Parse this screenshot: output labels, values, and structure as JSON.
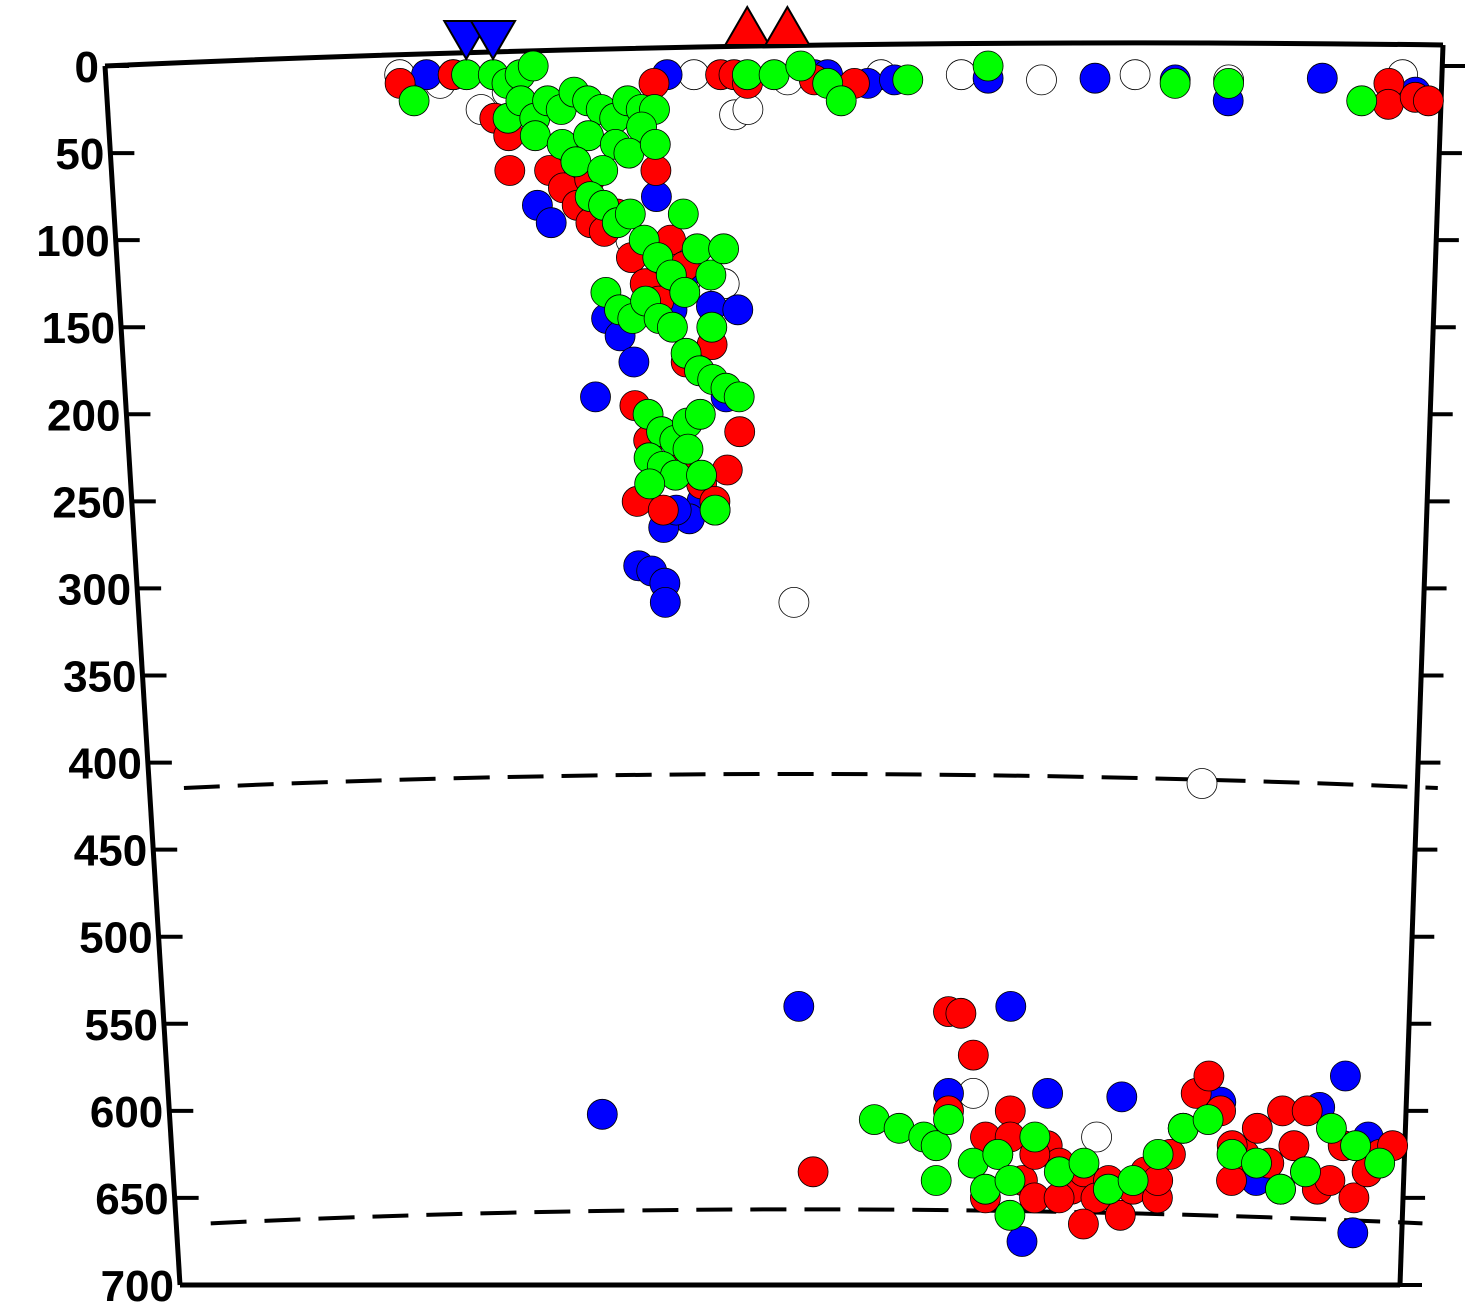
{
  "chart_data": {
    "type": "scatter",
    "title": "",
    "xlabel": "",
    "ylabel": "",
    "ylim": [
      700,
      0
    ],
    "y_ticks": [
      "0",
      "50",
      "100",
      "150",
      "200",
      "250",
      "300",
      "350",
      "400",
      "450",
      "500",
      "550",
      "600",
      "650",
      "700"
    ],
    "x_axis": "distance along profile (unlabeled)",
    "grid": false,
    "reference_lines": [
      {
        "name": "410",
        "style": "dashed"
      },
      {
        "name": "660",
        "style": "dashed"
      }
    ],
    "markers": [
      {
        "shape": "inverted-triangle",
        "color": "#0000ff",
        "x": [
          0.27,
          0.29
        ]
      },
      {
        "shape": "triangle",
        "color": "#ff0000",
        "x": [
          0.48,
          0.51
        ]
      }
    ],
    "series": [
      {
        "color": "#0000ff",
        "points": [
          [
            0.24,
            5
          ],
          [
            0.26,
            5
          ],
          [
            0.42,
            5
          ],
          [
            0.53,
            5
          ],
          [
            0.54,
            5
          ],
          [
            0.57,
            10
          ],
          [
            0.59,
            8
          ],
          [
            0.66,
            7
          ],
          [
            0.74,
            7
          ],
          [
            0.8,
            8
          ],
          [
            0.84,
            20
          ],
          [
            0.91,
            7
          ],
          [
            0.98,
            15
          ],
          [
            0.32,
            80
          ],
          [
            0.33,
            90
          ],
          [
            0.41,
            75
          ],
          [
            0.43,
            120
          ],
          [
            0.42,
            140
          ],
          [
            0.37,
            145
          ],
          [
            0.38,
            155
          ],
          [
            0.39,
            170
          ],
          [
            0.36,
            190
          ],
          [
            0.45,
            138
          ],
          [
            0.47,
            140
          ],
          [
            0.46,
            190
          ],
          [
            0.44,
            250
          ],
          [
            0.45,
            255
          ],
          [
            0.43,
            260
          ],
          [
            0.41,
            265
          ],
          [
            0.42,
            255
          ],
          [
            0.39,
            287
          ],
          [
            0.4,
            290
          ],
          [
            0.41,
            297
          ],
          [
            0.41,
            308
          ],
          [
            0.51,
            540
          ],
          [
            0.35,
            602
          ],
          [
            0.68,
            540
          ],
          [
            0.63,
            590
          ],
          [
            0.71,
            590
          ],
          [
            0.77,
            592
          ],
          [
            0.85,
            595
          ],
          [
            0.88,
            640
          ],
          [
            0.93,
            598
          ],
          [
            0.9,
            645
          ],
          [
            0.95,
            580
          ],
          [
            0.97,
            615
          ],
          [
            0.96,
            670
          ],
          [
            0.69,
            675
          ]
        ]
      },
      {
        "color": "#ff0000",
        "points": [
          [
            0.22,
            10
          ],
          [
            0.26,
            5
          ],
          [
            0.29,
            30
          ],
          [
            0.3,
            40
          ],
          [
            0.3,
            60
          ],
          [
            0.41,
            10
          ],
          [
            0.46,
            5
          ],
          [
            0.47,
            5
          ],
          [
            0.48,
            10
          ],
          [
            0.53,
            8
          ],
          [
            0.56,
            10
          ],
          [
            0.96,
            10
          ],
          [
            0.96,
            22
          ],
          [
            0.98,
            18
          ],
          [
            0.99,
            20
          ],
          [
            0.33,
            60
          ],
          [
            0.34,
            70
          ],
          [
            0.35,
            80
          ],
          [
            0.36,
            90
          ],
          [
            0.37,
            95
          ],
          [
            0.38,
            85
          ],
          [
            0.36,
            65
          ],
          [
            0.39,
            110
          ],
          [
            0.4,
            125
          ],
          [
            0.41,
            135
          ],
          [
            0.42,
            100
          ],
          [
            0.43,
            115
          ],
          [
            0.41,
            60
          ],
          [
            0.45,
            160
          ],
          [
            0.43,
            170
          ],
          [
            0.39,
            195
          ],
          [
            0.4,
            215
          ],
          [
            0.42,
            230
          ],
          [
            0.44,
            240
          ],
          [
            0.45,
            250
          ],
          [
            0.46,
            232
          ],
          [
            0.47,
            210
          ],
          [
            0.39,
            250
          ],
          [
            0.41,
            255
          ],
          [
            0.63,
            543
          ],
          [
            0.64,
            544
          ],
          [
            0.65,
            568
          ],
          [
            0.52,
            635
          ],
          [
            0.63,
            600
          ],
          [
            0.66,
            615
          ],
          [
            0.67,
            625
          ],
          [
            0.68,
            600
          ],
          [
            0.69,
            640
          ],
          [
            0.7,
            650
          ],
          [
            0.71,
            620
          ],
          [
            0.72,
            630
          ],
          [
            0.73,
            645
          ],
          [
            0.74,
            635
          ],
          [
            0.75,
            650
          ],
          [
            0.76,
            640
          ],
          [
            0.77,
            660
          ],
          [
            0.78,
            645
          ],
          [
            0.79,
            635
          ],
          [
            0.8,
            650
          ],
          [
            0.81,
            625
          ],
          [
            0.82,
            610
          ],
          [
            0.83,
            590
          ],
          [
            0.84,
            580
          ],
          [
            0.85,
            600
          ],
          [
            0.86,
            640
          ],
          [
            0.87,
            625
          ],
          [
            0.88,
            610
          ],
          [
            0.89,
            630
          ],
          [
            0.9,
            600
          ],
          [
            0.91,
            620
          ],
          [
            0.92,
            635
          ],
          [
            0.93,
            645
          ],
          [
            0.94,
            640
          ],
          [
            0.95,
            620
          ],
          [
            0.96,
            650
          ],
          [
            0.97,
            635
          ],
          [
            0.98,
            625
          ],
          [
            0.99,
            620
          ],
          [
            0.66,
            650
          ],
          [
            0.68,
            615
          ],
          [
            0.7,
            625
          ],
          [
            0.72,
            650
          ],
          [
            0.74,
            665
          ],
          [
            0.8,
            640
          ],
          [
            0.86,
            620
          ],
          [
            0.92,
            600
          ]
        ]
      },
      {
        "color": "#00ff00",
        "points": [
          [
            0.23,
            20
          ],
          [
            0.27,
            5
          ],
          [
            0.29,
            5
          ],
          [
            0.3,
            10
          ],
          [
            0.31,
            5
          ],
          [
            0.32,
            0
          ],
          [
            0.48,
            5
          ],
          [
            0.5,
            5
          ],
          [
            0.52,
            0
          ],
          [
            0.54,
            10
          ],
          [
            0.55,
            20
          ],
          [
            0.6,
            8
          ],
          [
            0.66,
            0
          ],
          [
            0.8,
            10
          ],
          [
            0.84,
            10
          ],
          [
            0.94,
            20
          ],
          [
            0.3,
            30
          ],
          [
            0.31,
            20
          ],
          [
            0.32,
            30
          ],
          [
            0.33,
            20
          ],
          [
            0.34,
            25
          ],
          [
            0.35,
            15
          ],
          [
            0.36,
            20
          ],
          [
            0.37,
            25
          ],
          [
            0.38,
            30
          ],
          [
            0.39,
            20
          ],
          [
            0.4,
            25
          ],
          [
            0.41,
            25
          ],
          [
            0.32,
            40
          ],
          [
            0.34,
            45
          ],
          [
            0.36,
            40
          ],
          [
            0.38,
            45
          ],
          [
            0.4,
            35
          ],
          [
            0.35,
            55
          ],
          [
            0.37,
            60
          ],
          [
            0.39,
            50
          ],
          [
            0.41,
            45
          ],
          [
            0.36,
            75
          ],
          [
            0.37,
            80
          ],
          [
            0.38,
            90
          ],
          [
            0.39,
            85
          ],
          [
            0.4,
            100
          ],
          [
            0.41,
            110
          ],
          [
            0.42,
            120
          ],
          [
            0.43,
            130
          ],
          [
            0.44,
            105
          ],
          [
            0.45,
            120
          ],
          [
            0.43,
            85
          ],
          [
            0.46,
            105
          ],
          [
            0.37,
            130
          ],
          [
            0.38,
            140
          ],
          [
            0.39,
            145
          ],
          [
            0.4,
            135
          ],
          [
            0.41,
            145
          ],
          [
            0.42,
            150
          ],
          [
            0.43,
            165
          ],
          [
            0.44,
            175
          ],
          [
            0.45,
            180
          ],
          [
            0.46,
            185
          ],
          [
            0.47,
            190
          ],
          [
            0.45,
            150
          ],
          [
            0.4,
            200
          ],
          [
            0.41,
            210
          ],
          [
            0.42,
            215
          ],
          [
            0.43,
            205
          ],
          [
            0.44,
            200
          ],
          [
            0.4,
            225
          ],
          [
            0.41,
            230
          ],
          [
            0.42,
            235
          ],
          [
            0.43,
            220
          ],
          [
            0.4,
            240
          ],
          [
            0.44,
            235
          ],
          [
            0.45,
            255
          ],
          [
            0.57,
            605
          ],
          [
            0.59,
            610
          ],
          [
            0.61,
            615
          ],
          [
            0.62,
            620
          ],
          [
            0.63,
            605
          ],
          [
            0.65,
            630
          ],
          [
            0.66,
            645
          ],
          [
            0.67,
            625
          ],
          [
            0.68,
            640
          ],
          [
            0.7,
            615
          ],
          [
            0.72,
            635
          ],
          [
            0.74,
            630
          ],
          [
            0.76,
            645
          ],
          [
            0.78,
            640
          ],
          [
            0.8,
            625
          ],
          [
            0.82,
            610
          ],
          [
            0.84,
            605
          ],
          [
            0.86,
            625
          ],
          [
            0.88,
            630
          ],
          [
            0.9,
            645
          ],
          [
            0.92,
            635
          ],
          [
            0.94,
            610
          ],
          [
            0.96,
            620
          ],
          [
            0.98,
            630
          ],
          [
            0.62,
            640
          ],
          [
            0.68,
            660
          ]
        ]
      },
      {
        "color": "#ffffff",
        "points": [
          [
            0.22,
            5
          ],
          [
            0.25,
            10
          ],
          [
            0.28,
            25
          ],
          [
            0.3,
            15
          ],
          [
            0.44,
            5
          ],
          [
            0.47,
            28
          ],
          [
            0.48,
            25
          ],
          [
            0.51,
            8
          ],
          [
            0.58,
            5
          ],
          [
            0.64,
            5
          ],
          [
            0.7,
            8
          ],
          [
            0.77,
            5
          ],
          [
            0.84,
            8
          ],
          [
            0.97,
            5
          ],
          [
            0.39,
            100
          ],
          [
            0.43,
            125
          ],
          [
            0.46,
            125
          ],
          [
            0.51,
            308
          ],
          [
            0.83,
            412
          ],
          [
            0.65,
            590
          ],
          [
            0.75,
            615
          ]
        ]
      }
    ]
  }
}
